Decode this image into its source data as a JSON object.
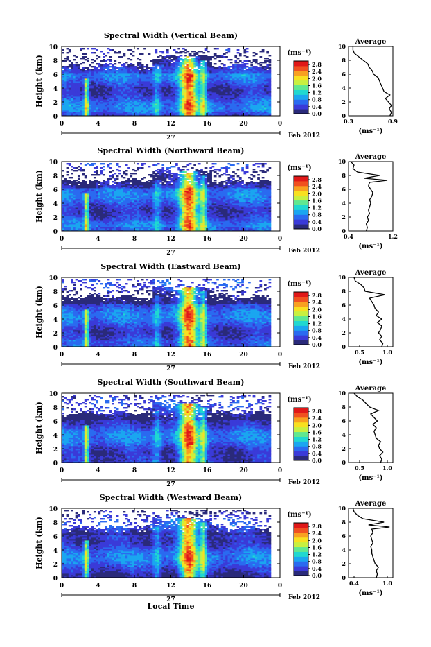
{
  "chart_data": {
    "type": "heatmap",
    "date_label": "Feb 2012",
    "day_label": "27",
    "xlabel": "Local Time",
    "ylabel": "Height (km)",
    "x_ticks": [
      "0",
      "4",
      "8",
      "12",
      "16",
      "20",
      "0"
    ],
    "y_ticks": [
      "0",
      "2",
      "4",
      "6",
      "8",
      "10"
    ],
    "xlim": [
      0,
      24
    ],
    "ylim": [
      0,
      10
    ],
    "colorbar": {
      "unit": "(ms⁻¹)",
      "ticks": [
        "0.0",
        "0.4",
        "0.8",
        "1.2",
        "1.6",
        "2.0",
        "2.4",
        "2.8"
      ],
      "range": [
        0.0,
        3.0
      ],
      "colors": [
        "#2a2a7a",
        "#3a3ad8",
        "#2a6af0",
        "#1aa6f0",
        "#20d8d0",
        "#60e890",
        "#c8f040",
        "#f8e020",
        "#f8a020",
        "#f05020",
        "#e01818"
      ]
    },
    "profile_title": "Average",
    "profile_xunit": "(ms⁻¹)",
    "panels": [
      {
        "title": "Spectral Width (Vertical Beam)",
        "profile_xticks": [
          "0.3",
          "0.9"
        ],
        "profile_xlim": [
          0.3,
          0.9
        ],
        "profile": {
          "height": [
            0.0,
            0.5,
            1.0,
            1.5,
            2.0,
            2.5,
            3.0,
            3.5,
            4.0,
            4.5,
            5.0,
            5.5,
            6.0,
            6.5,
            7.0,
            7.5,
            8.0,
            8.5,
            9.0,
            9.5,
            10.0
          ],
          "value": [
            0.86,
            0.88,
            0.85,
            0.88,
            0.84,
            0.8,
            0.86,
            0.78,
            0.76,
            0.74,
            0.72,
            0.7,
            0.64,
            0.62,
            0.58,
            0.56,
            0.5,
            0.44,
            0.38,
            0.36,
            0.36
          ]
        }
      },
      {
        "title": "Spectral Width (Northward Beam)",
        "profile_xticks": [
          "0.4",
          "1.2"
        ],
        "profile_xlim": [
          0.4,
          1.2
        ],
        "profile": {
          "height": [
            0.0,
            0.5,
            1.0,
            1.5,
            2.0,
            2.5,
            3.0,
            3.5,
            4.0,
            4.5,
            5.0,
            5.5,
            6.0,
            6.5,
            7.0,
            7.3,
            7.6,
            8.0,
            8.5,
            9.0,
            9.5,
            10.0
          ],
          "value": [
            0.72,
            0.74,
            0.72,
            0.76,
            0.74,
            0.78,
            0.76,
            0.78,
            0.8,
            0.78,
            0.82,
            0.84,
            0.8,
            0.76,
            0.78,
            1.1,
            0.68,
            0.96,
            0.56,
            0.48,
            0.5,
            0.44
          ]
        }
      },
      {
        "title": "Spectral Width (Eastward Beam)",
        "profile_xticks": [
          "0.5",
          "1.0"
        ],
        "profile_xlim": [
          0.3,
          1.1
        ],
        "profile": {
          "height": [
            0.0,
            0.5,
            1.0,
            1.5,
            2.0,
            2.5,
            3.0,
            3.5,
            4.0,
            4.5,
            5.0,
            5.5,
            6.0,
            6.5,
            7.0,
            7.5,
            8.0,
            8.5,
            9.0,
            9.5,
            10.0
          ],
          "value": [
            0.9,
            0.92,
            0.86,
            0.9,
            0.84,
            0.88,
            0.9,
            0.82,
            0.9,
            0.8,
            0.84,
            0.78,
            0.76,
            0.72,
            0.68,
            0.96,
            0.6,
            0.58,
            0.52,
            0.42,
            0.4
          ]
        }
      },
      {
        "title": "Spectral Width (Southward Beam)",
        "profile_xticks": [
          "0.5",
          "1.0"
        ],
        "profile_xlim": [
          0.3,
          1.1
        ],
        "profile": {
          "height": [
            0.0,
            0.5,
            1.0,
            1.5,
            2.0,
            2.5,
            3.0,
            3.5,
            4.0,
            4.5,
            5.0,
            5.5,
            6.0,
            6.5,
            7.0,
            7.5,
            8.0,
            8.5,
            9.0,
            9.5,
            10.0
          ],
          "value": [
            0.88,
            0.9,
            0.86,
            0.92,
            0.86,
            0.84,
            0.88,
            0.8,
            0.78,
            0.76,
            0.8,
            0.74,
            0.82,
            0.76,
            0.7,
            0.84,
            0.68,
            0.62,
            0.56,
            0.46,
            0.4
          ]
        }
      },
      {
        "title": "Spectral Width (Westward Beam)",
        "profile_xticks": [
          "0.4",
          "1.0"
        ],
        "profile_xlim": [
          0.3,
          1.1
        ],
        "profile": {
          "height": [
            0.0,
            0.5,
            1.0,
            1.5,
            2.0,
            2.5,
            3.0,
            3.5,
            4.0,
            4.5,
            5.0,
            5.5,
            6.0,
            6.5,
            7.0,
            7.3,
            7.6,
            8.0,
            8.5,
            9.0,
            9.5,
            10.0
          ],
          "value": [
            0.8,
            0.82,
            0.8,
            0.84,
            0.78,
            0.76,
            0.74,
            0.72,
            0.72,
            0.7,
            0.74,
            0.72,
            0.7,
            0.74,
            0.72,
            1.04,
            0.66,
            0.94,
            0.56,
            0.46,
            0.4,
            0.38
          ]
        }
      }
    ]
  }
}
